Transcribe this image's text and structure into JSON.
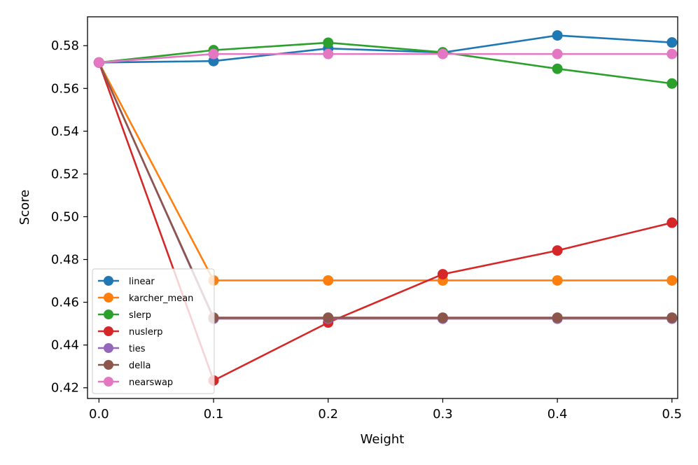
{
  "chart_data": {
    "type": "line",
    "title": "",
    "xlabel": "Weight",
    "ylabel": "Score",
    "x": [
      0.0,
      0.1,
      0.2,
      0.3,
      0.4,
      0.5
    ],
    "xlim": [
      -0.01,
      0.505
    ],
    "ylim": [
      0.415,
      0.5935
    ],
    "xticks": [
      0.0,
      0.1,
      0.2,
      0.3,
      0.4,
      0.5
    ],
    "xtick_labels": [
      "0.0",
      "0.1",
      "0.2",
      "0.3",
      "0.4",
      "0.5"
    ],
    "yticks": [
      0.42,
      0.44,
      0.46,
      0.48,
      0.5,
      0.52,
      0.54,
      0.56,
      0.58
    ],
    "ytick_labels": [
      "0.42",
      "0.44",
      "0.46",
      "0.48",
      "0.50",
      "0.52",
      "0.54",
      "0.56",
      "0.58"
    ],
    "grid": false,
    "legend_position": "lower-left",
    "series": [
      {
        "name": "linear",
        "color": "#1f77b4",
        "values": [
          0.5721,
          0.5728,
          0.5787,
          0.5768,
          0.5848,
          0.5815
        ]
      },
      {
        "name": "karcher_mean",
        "color": "#ff7f0e",
        "values": [
          0.5721,
          0.4702,
          0.4702,
          0.4702,
          0.4702,
          0.4702
        ]
      },
      {
        "name": "slerp",
        "color": "#2ca02c",
        "values": [
          0.5721,
          0.5779,
          0.5814,
          0.5769,
          0.5692,
          0.5623
        ]
      },
      {
        "name": "nuslerp",
        "color": "#d62728",
        "values": [
          0.5721,
          0.4234,
          0.4505,
          0.4731,
          0.4842,
          0.4972
        ]
      },
      {
        "name": "ties",
        "color": "#9467bd",
        "values": [
          0.5721,
          0.4523,
          0.4523,
          0.4523,
          0.4523,
          0.4523
        ]
      },
      {
        "name": "della",
        "color": "#8c564b",
        "values": [
          0.5721,
          0.4528,
          0.4528,
          0.4528,
          0.4528,
          0.4528
        ]
      },
      {
        "name": "nearswap",
        "color": "#e377c2",
        "values": [
          0.5721,
          0.5761,
          0.5761,
          0.5761,
          0.5761,
          0.5761
        ]
      }
    ]
  }
}
